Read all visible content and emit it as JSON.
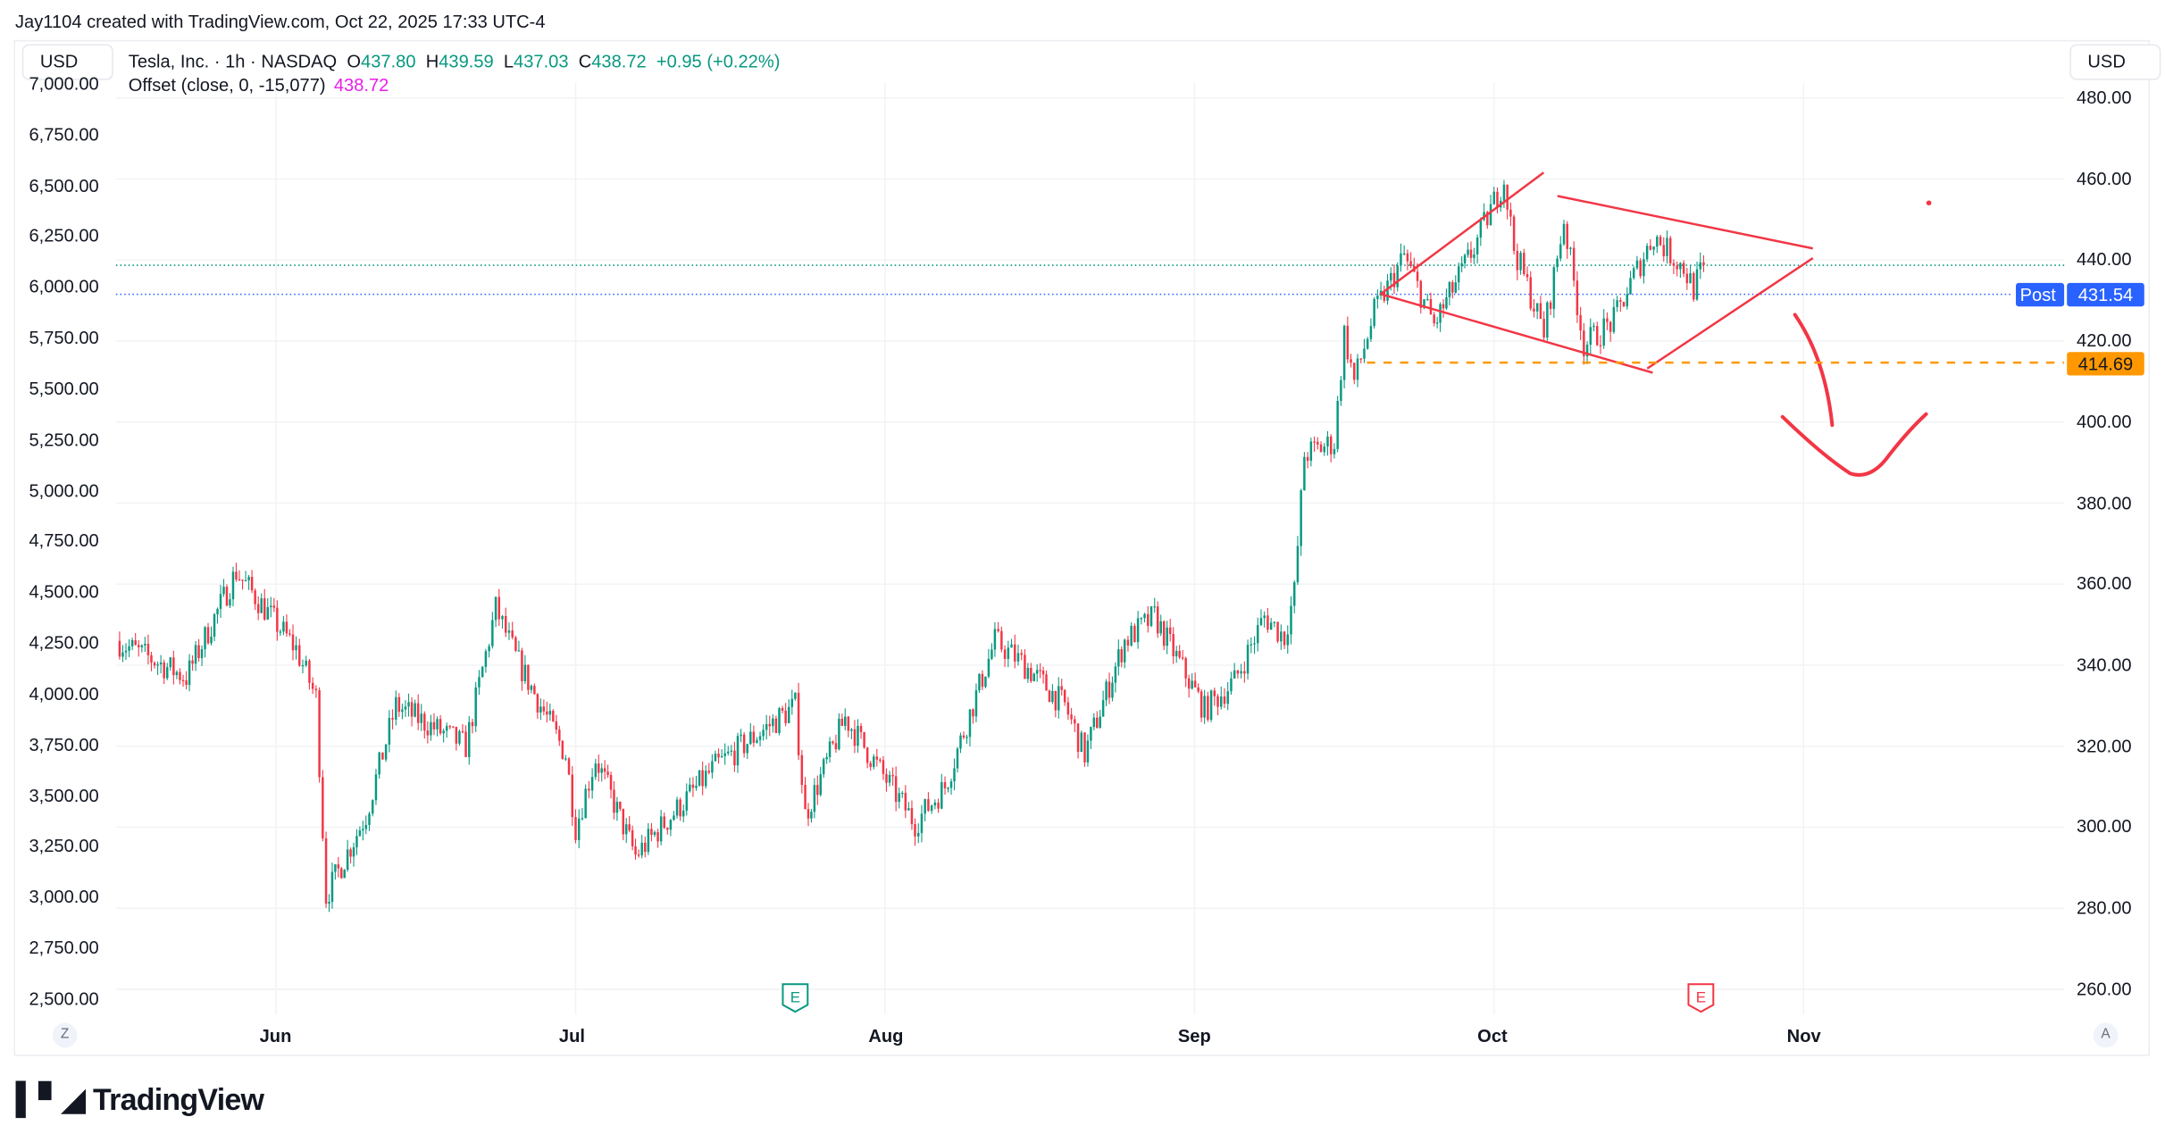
{
  "attribution": "Jay1104 created with TradingView.com, Oct 22, 2025 17:33 UTC-4",
  "currency_left": "USD",
  "currency_right": "USD",
  "legend": {
    "symbol": "Tesla, Inc. · 1h · NASDAQ",
    "o_label": "O",
    "o": "437.80",
    "h_label": "H",
    "h": "439.59",
    "l_label": "L",
    "l": "437.03",
    "c_label": "C",
    "c": "438.72",
    "change": "+0.95 (+0.22%)",
    "indicator": "Offset (close, 0, -15,077)",
    "indicator_value": "438.72"
  },
  "post_tag": {
    "label": "Post",
    "value": "431.54"
  },
  "level_tag": "414.69",
  "scale_buttons": {
    "left": "Z",
    "right": "A"
  },
  "earnings_markers": [
    {
      "label": "E",
      "date": "2025-07-23",
      "color": "#089981"
    },
    {
      "label": "E",
      "date": "2025-10-22",
      "color": "#f23645"
    }
  ],
  "logo": "TradingView",
  "colors": {
    "up": "#089981",
    "down": "#f23645",
    "drawing": "#f23645",
    "level": "#ff9800",
    "post": "#2962ff",
    "indicator": "#e91ee9"
  },
  "chart_data": {
    "type": "candlestick",
    "title": "Tesla, Inc. · 1h · NASDAQ",
    "x_ticks": [
      "Jun",
      "Jul",
      "Aug",
      "Sep",
      "Oct",
      "Nov"
    ],
    "right_axis_ticks": [
      "480.00",
      "460.00",
      "440.00",
      "420.00",
      "400.00",
      "380.00",
      "360.00",
      "340.00",
      "320.00",
      "300.00",
      "280.00",
      "260.00"
    ],
    "left_axis_ticks": [
      "7,000.00",
      "6,750.00",
      "6,500.00",
      "6,250.00",
      "6,000.00",
      "5,750.00",
      "5,500.00",
      "5,250.00",
      "5,000.00",
      "4,750.00",
      "4,500.00",
      "4,250.00",
      "4,000.00",
      "3,750.00",
      "3,500.00",
      "3,250.00",
      "3,000.00",
      "2,750.00",
      "2,500.00"
    ],
    "ylim": [
      260,
      480
    ],
    "close_keypoints": [
      [
        "2025-05-16",
        346
      ],
      [
        "2025-05-23",
        337
      ],
      [
        "2025-05-28",
        363
      ],
      [
        "2025-06-03",
        344
      ],
      [
        "2025-06-05",
        332
      ],
      [
        "2025-06-06",
        283
      ],
      [
        "2025-06-10",
        303
      ],
      [
        "2025-06-13",
        330
      ],
      [
        "2025-06-20",
        320
      ],
      [
        "2025-06-23",
        354
      ],
      [
        "2025-06-25",
        342
      ],
      [
        "2025-06-30",
        318
      ],
      [
        "2025-07-01",
        300
      ],
      [
        "2025-07-03",
        317
      ],
      [
        "2025-07-07",
        293
      ],
      [
        "2025-07-15",
        315
      ],
      [
        "2025-07-23",
        330
      ],
      [
        "2025-07-24",
        303
      ],
      [
        "2025-07-28",
        327
      ],
      [
        "2025-08-04",
        301
      ],
      [
        "2025-08-07",
        310
      ],
      [
        "2025-08-12",
        346
      ],
      [
        "2025-08-15",
        340
      ],
      [
        "2025-08-19",
        330
      ],
      [
        "2025-08-21",
        318
      ],
      [
        "2025-08-25",
        346
      ],
      [
        "2025-08-28",
        352
      ],
      [
        "2025-09-02",
        329
      ],
      [
        "2025-09-05",
        336
      ],
      [
        "2025-09-08",
        352
      ],
      [
        "2025-09-10",
        347
      ],
      [
        "2025-09-11",
        358
      ],
      [
        "2025-09-12",
        392
      ],
      [
        "2025-09-15",
        395
      ],
      [
        "2025-09-16",
        422
      ],
      [
        "2025-09-17",
        410
      ],
      [
        "2025-09-19",
        427
      ],
      [
        "2025-09-22",
        441
      ],
      [
        "2025-09-25",
        424
      ],
      [
        "2025-09-29",
        443
      ],
      [
        "2025-10-02",
        460
      ],
      [
        "2025-10-03",
        443
      ],
      [
        "2025-10-06",
        422
      ],
      [
        "2025-10-08",
        450
      ],
      [
        "2025-10-10",
        419
      ],
      [
        "2025-10-13",
        425
      ],
      [
        "2025-10-15",
        436
      ],
      [
        "2025-10-17",
        446
      ],
      [
        "2025-10-20",
        438
      ],
      [
        "2025-10-21",
        433
      ],
      [
        "2025-10-22",
        438.72
      ]
    ],
    "lines": {
      "last_close": 438.72,
      "post_market": 431.54,
      "support_level": 414.69
    },
    "annotations": "diamond pattern (red trendlines) with projected downward arrow"
  }
}
